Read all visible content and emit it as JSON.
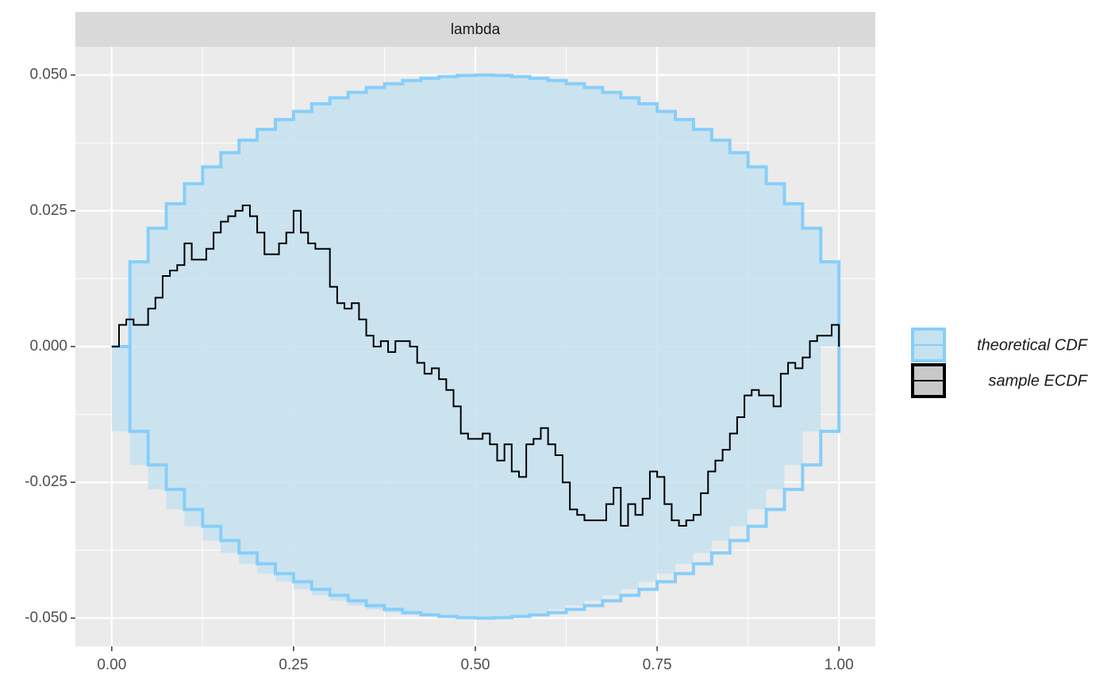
{
  "chart_data": {
    "type": "line",
    "strip": "lambda",
    "grid": true,
    "legend": "right",
    "xlim": [
      -0.05,
      1.05
    ],
    "ylim": [
      -0.0552,
      0.0552
    ],
    "xticks": [
      {
        "value": 0,
        "label": "0.00"
      },
      {
        "value": 0.25,
        "label": "0.25"
      },
      {
        "value": 0.5,
        "label": "0.50"
      },
      {
        "value": 0.75,
        "label": "0.75"
      },
      {
        "value": 1,
        "label": "1.00"
      }
    ],
    "yticks": [
      {
        "value": -0.05,
        "label": "-0.050"
      },
      {
        "value": -0.025,
        "label": "-0.025"
      },
      {
        "value": 0,
        "label": "0.000"
      },
      {
        "value": 0.025,
        "label": "0.025"
      },
      {
        "value": 0.05,
        "label": "0.050"
      }
    ],
    "x_minor_breaks": [
      0.125,
      0.375,
      0.625,
      0.875
    ],
    "y_minor_breaks": [
      -0.0375,
      -0.0125,
      0.0125,
      0.0375
    ],
    "band": {
      "name": "theoretical CDF",
      "color": "#87cefa",
      "fill": "#c6e2ee",
      "x": [
        0,
        0.025,
        0.05,
        0.075,
        0.1,
        0.125,
        0.15,
        0.175,
        0.2,
        0.225,
        0.25,
        0.275,
        0.3,
        0.325,
        0.35,
        0.375,
        0.4,
        0.425,
        0.45,
        0.475,
        0.5,
        0.525,
        0.55,
        0.575,
        0.6,
        0.625,
        0.65,
        0.675,
        0.7,
        0.725,
        0.75,
        0.775,
        0.8,
        0.825,
        0.85,
        0.875,
        0.9,
        0.925,
        0.95,
        0.975,
        1
      ],
      "upper": [
        0,
        0.0156,
        0.0218,
        0.0263,
        0.03,
        0.0331,
        0.0357,
        0.038,
        0.04,
        0.0418,
        0.0433,
        0.0447,
        0.0458,
        0.0468,
        0.0477,
        0.0484,
        0.049,
        0.0494,
        0.0497,
        0.0499,
        0.05,
        0.0499,
        0.0497,
        0.0494,
        0.049,
        0.0484,
        0.0477,
        0.0468,
        0.0458,
        0.0447,
        0.0433,
        0.0418,
        0.04,
        0.038,
        0.0357,
        0.0331,
        0.03,
        0.0263,
        0.0218,
        0.0156,
        0
      ],
      "lower": [
        0,
        -0.0156,
        -0.0218,
        -0.0263,
        -0.03,
        -0.0331,
        -0.0357,
        -0.038,
        -0.04,
        -0.0418,
        -0.0433,
        -0.0447,
        -0.0458,
        -0.0468,
        -0.0477,
        -0.0484,
        -0.049,
        -0.0494,
        -0.0497,
        -0.0499,
        -0.05,
        -0.0499,
        -0.0497,
        -0.0494,
        -0.049,
        -0.0484,
        -0.0477,
        -0.0468,
        -0.0458,
        -0.0447,
        -0.0433,
        -0.0418,
        -0.04,
        -0.038,
        -0.0357,
        -0.0331,
        -0.03,
        -0.0263,
        -0.0218,
        -0.0156,
        0
      ]
    },
    "series": [
      {
        "name": "sample ECDF",
        "color": "#000000",
        "fill": "#c8c8c8",
        "x": [
          0,
          0.01,
          0.02,
          0.03,
          0.04,
          0.05,
          0.06,
          0.07,
          0.08,
          0.09,
          0.1,
          0.11,
          0.12,
          0.13,
          0.14,
          0.15,
          0.16,
          0.17,
          0.18,
          0.19,
          0.2,
          0.21,
          0.22,
          0.23,
          0.24,
          0.25,
          0.26,
          0.27,
          0.28,
          0.29,
          0.3,
          0.31,
          0.32,
          0.33,
          0.34,
          0.35,
          0.36,
          0.37,
          0.38,
          0.39,
          0.4,
          0.41,
          0.42,
          0.43,
          0.44,
          0.45,
          0.46,
          0.47,
          0.48,
          0.49,
          0.5,
          0.51,
          0.52,
          0.53,
          0.54,
          0.55,
          0.56,
          0.57,
          0.58,
          0.59,
          0.6,
          0.61,
          0.62,
          0.63,
          0.64,
          0.65,
          0.66,
          0.67,
          0.68,
          0.69,
          0.7,
          0.71,
          0.72,
          0.73,
          0.74,
          0.75,
          0.76,
          0.77,
          0.78,
          0.79,
          0.8,
          0.81,
          0.82,
          0.83,
          0.84,
          0.85,
          0.86,
          0.87,
          0.88,
          0.89,
          0.9,
          0.91,
          0.92,
          0.93,
          0.94,
          0.95,
          0.96,
          0.97,
          0.98,
          0.99,
          1
        ],
        "values": [
          0,
          0.004,
          0.005,
          0.004,
          0.004,
          0.007,
          0.009,
          0.013,
          0.014,
          0.015,
          0.019,
          0.016,
          0.016,
          0.018,
          0.021,
          0.023,
          0.024,
          0.025,
          0.026,
          0.024,
          0.021,
          0.017,
          0.017,
          0.019,
          0.021,
          0.025,
          0.021,
          0.019,
          0.018,
          0.018,
          0.011,
          0.008,
          0.007,
          0.008,
          0.005,
          0.002,
          0,
          0.001,
          -0.001,
          0.001,
          0.001,
          0,
          -0.003,
          -0.005,
          -0.004,
          -0.006,
          -0.008,
          -0.011,
          -0.016,
          -0.017,
          -0.017,
          -0.016,
          -0.018,
          -0.021,
          -0.018,
          -0.023,
          -0.024,
          -0.018,
          -0.017,
          -0.015,
          -0.018,
          -0.02,
          -0.025,
          -0.03,
          -0.031,
          -0.032,
          -0.032,
          -0.032,
          -0.029,
          -0.026,
          -0.033,
          -0.029,
          -0.031,
          -0.028,
          -0.023,
          -0.024,
          -0.029,
          -0.032,
          -0.033,
          -0.032,
          -0.031,
          -0.027,
          -0.023,
          -0.021,
          -0.019,
          -0.016,
          -0.013,
          -0.009,
          -0.008,
          -0.009,
          -0.009,
          -0.011,
          -0.005,
          -0.003,
          -0.004,
          -0.002,
          0.001,
          0.002,
          0.002,
          0.004,
          0
        ]
      }
    ]
  }
}
